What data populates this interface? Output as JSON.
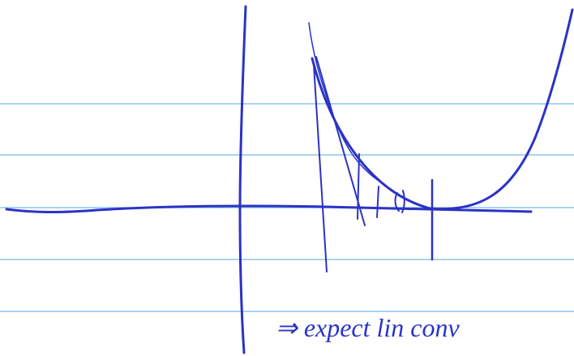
{
  "annotation": "⇒ expect lin conv"
}
